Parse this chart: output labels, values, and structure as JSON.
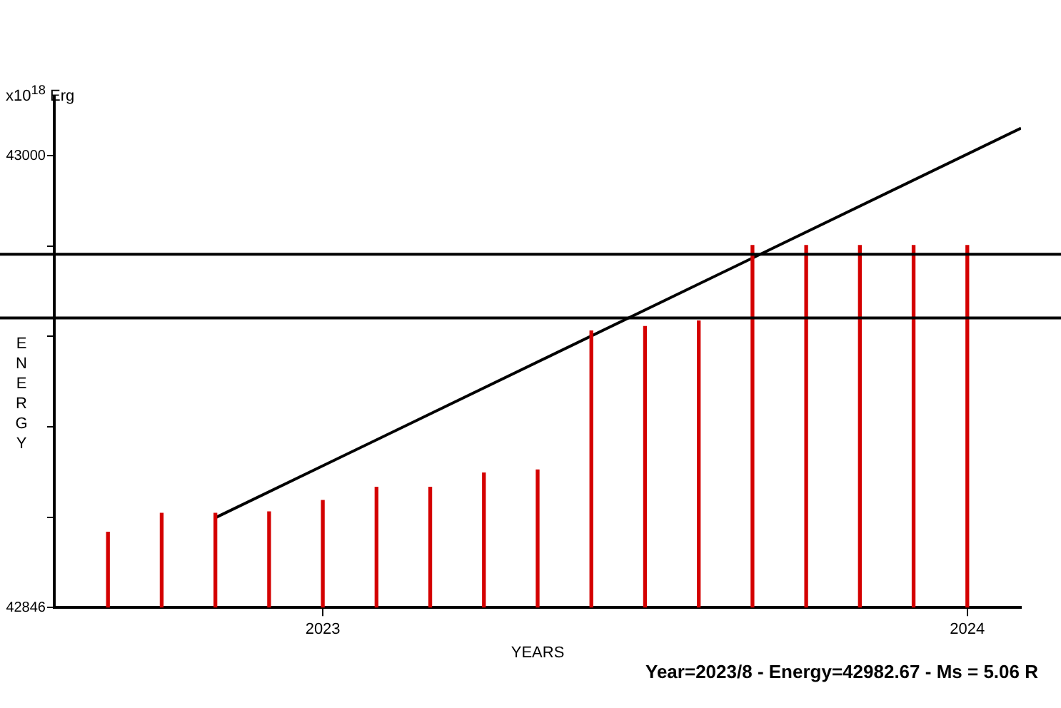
{
  "chart_data": {
    "type": "bar",
    "xlabel": "YEARS",
    "ylabel": "ENERGY",
    "annotations": [
      "x10$^{18}$ Erg",
      "Year=2023/8 - Energy=42982.67 - Ms = 5.06 R"
    ],
    "xlim": [
      "2022-08",
      "2024-02"
    ],
    "xticks": [
      "2023",
      "2024"
    ],
    "ylim": [
      42846,
      43020
    ],
    "yticks": [
      42846,
      {
        "value": 42876.8,
        "label": null
      },
      {
        "value": 42907.6,
        "label": null
      },
      {
        "value": 42938.4,
        "label": null
      },
      {
        "value": 42969.2,
        "label": null
      },
      43000
    ],
    "series": [
      {
        "color": "#d40000",
        "x": [
          "2022-09",
          "2022-10",
          "2022-11",
          "2022-12",
          "2023-01",
          "2023-02",
          "2023-03",
          "2023-04",
          "2023-05",
          "2023-06",
          "2023-07",
          "2023-08",
          "2023-09",
          "2023-10",
          "2023-11",
          "2023-12",
          "2024-01"
        ],
        "values": [
          42871.7,
          42878.1,
          42878.1,
          42878.6,
          42882.5,
          42887.0,
          42887.0,
          42891.9,
          42892.9,
          42940.3,
          42941.8,
          42943.7,
          42969.4,
          42969.4,
          42969.4,
          42969.4,
          42969.4
        ]
      },
      {
        "type": "line",
        "color": "#000000",
        "x": [
          "2022-11",
          "2024-02"
        ],
        "values": [
          42876.6,
          43009.4
        ]
      }
    ],
    "ref_lines": [
      {
        "axis": "y",
        "value": 42966.4,
        "color": "#000000"
      },
      {
        "axis": "y",
        "value": 42944.7,
        "color": "#000000"
      }
    ],
    "grid": false,
    "legend": false,
    "marker": "none",
    "line_style": "solid"
  }
}
